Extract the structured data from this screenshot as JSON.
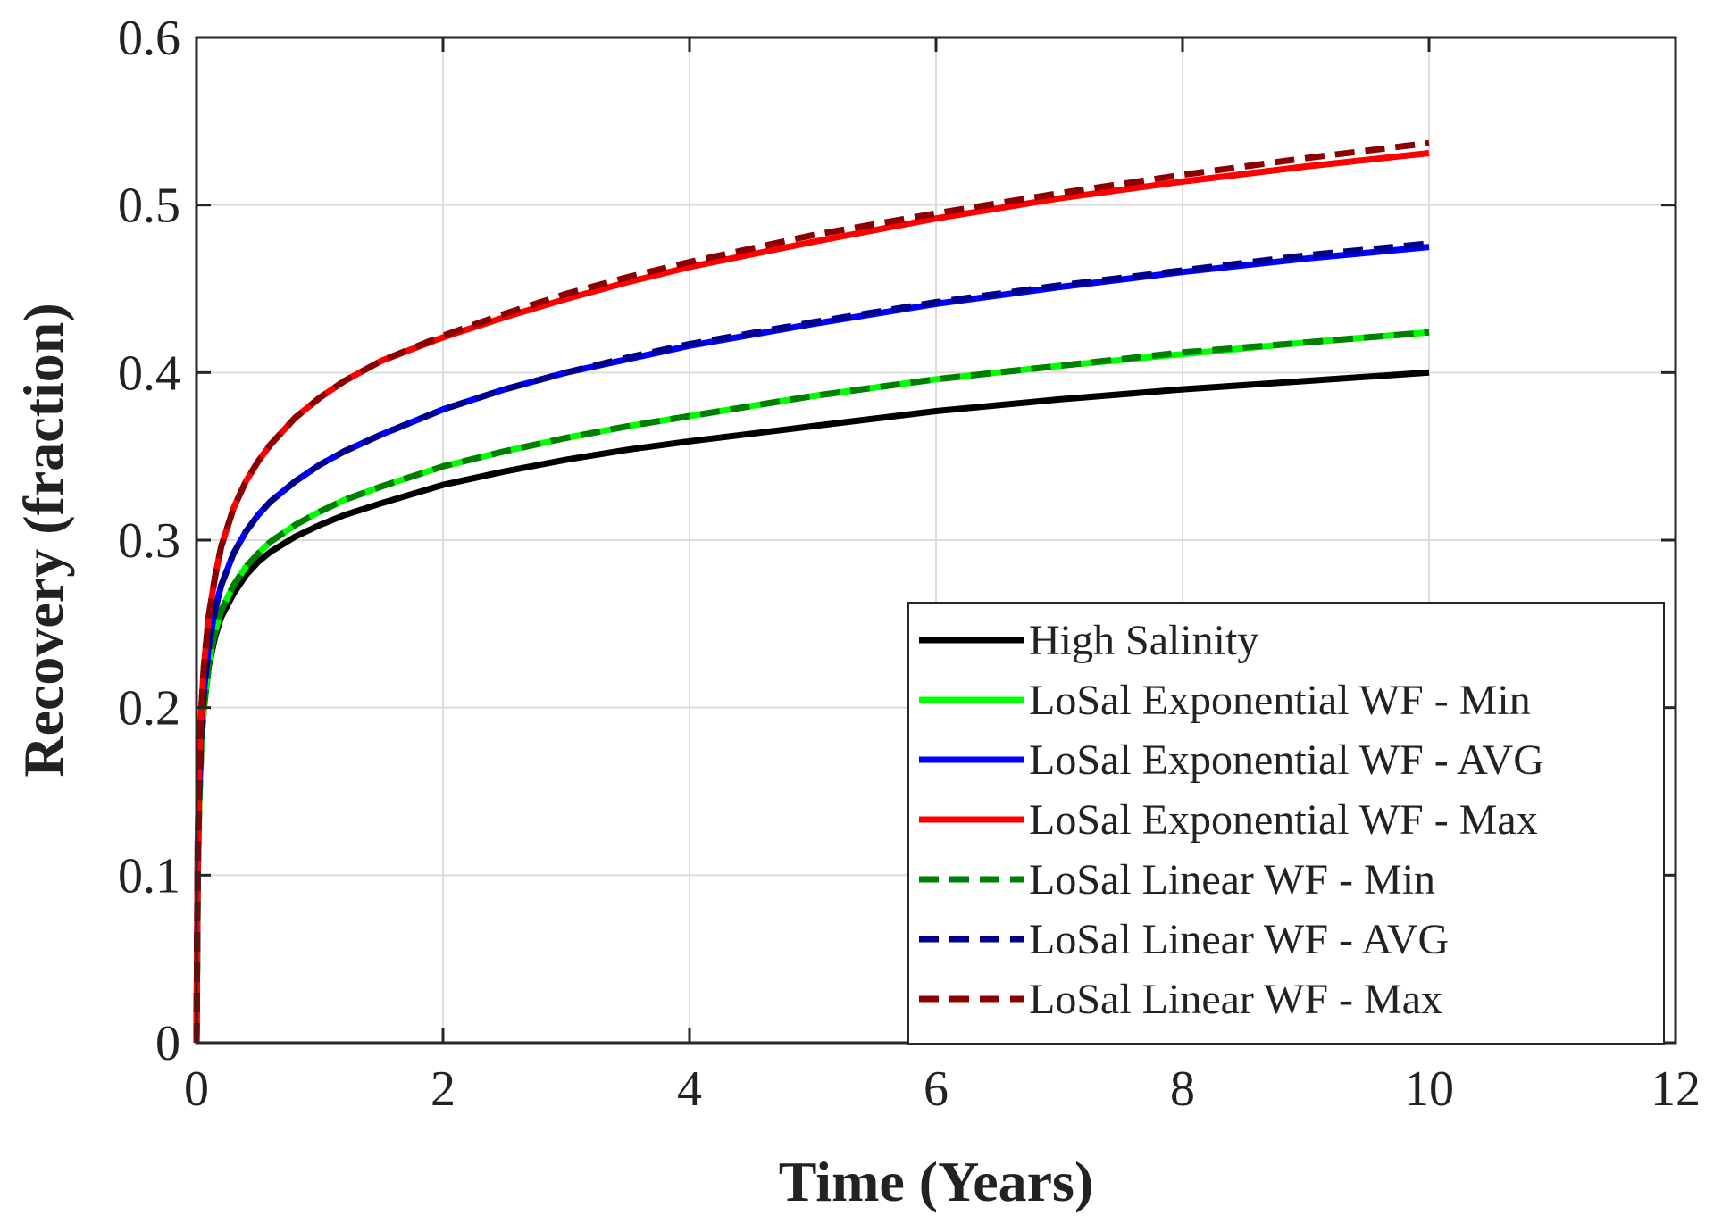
{
  "chart_data": {
    "type": "line",
    "title": "",
    "xlabel": "Time (Years)",
    "ylabel": "Recovery (fraction)",
    "xlim": [
      0,
      12
    ],
    "ylim": [
      0,
      0.6
    ],
    "xticks": [
      0,
      2,
      4,
      6,
      8,
      10,
      12
    ],
    "xtick_labels": [
      "0",
      "2",
      "4",
      "6",
      "8",
      "10",
      "12"
    ],
    "yticks": [
      0,
      0.1,
      0.2,
      0.3,
      0.4,
      0.5,
      0.6
    ],
    "ytick_labels": [
      "0",
      "0.1",
      "0.2",
      "0.3",
      "0.4",
      "0.5",
      "0.6"
    ],
    "grid": true,
    "legend_position": "bottom-right",
    "x": [
      0,
      0.01,
      0.02,
      0.04,
      0.06,
      0.1,
      0.15,
      0.2,
      0.3,
      0.4,
      0.5,
      0.6,
      0.8,
      1,
      1.2,
      1.5,
      2,
      2.5,
      3,
      3.5,
      4,
      5,
      6,
      7,
      8,
      9,
      10
    ],
    "series": [
      {
        "name": "High Salinity",
        "color": "#000000",
        "dash": "solid",
        "values": [
          0,
          0.1,
          0.14,
          0.18,
          0.2,
          0.225,
          0.242,
          0.254,
          0.268,
          0.279,
          0.287,
          0.293,
          0.302,
          0.309,
          0.315,
          0.322,
          0.333,
          0.341,
          0.348,
          0.354,
          0.359,
          0.368,
          0.377,
          0.384,
          0.39,
          0.395,
          0.4
        ]
      },
      {
        "name": "LoSal Exponential WF - Min",
        "color": "#00ff00",
        "dash": "solid",
        "values": [
          0,
          0.1,
          0.14,
          0.18,
          0.2,
          0.227,
          0.245,
          0.258,
          0.273,
          0.284,
          0.292,
          0.299,
          0.309,
          0.317,
          0.324,
          0.332,
          0.344,
          0.353,
          0.361,
          0.368,
          0.374,
          0.386,
          0.396,
          0.404,
          0.411,
          0.418,
          0.424
        ]
      },
      {
        "name": "LoSal Exponential WF - AVG",
        "color": "#0000ff",
        "dash": "solid",
        "values": [
          0,
          0.11,
          0.15,
          0.19,
          0.21,
          0.237,
          0.258,
          0.273,
          0.292,
          0.305,
          0.315,
          0.323,
          0.335,
          0.345,
          0.353,
          0.363,
          0.378,
          0.39,
          0.4,
          0.408,
          0.416,
          0.429,
          0.441,
          0.451,
          0.46,
          0.468,
          0.475
        ]
      },
      {
        "name": "LoSal Exponential WF - Max",
        "color": "#ff0000",
        "dash": "solid",
        "values": [
          0,
          0.12,
          0.16,
          0.2,
          0.225,
          0.255,
          0.278,
          0.296,
          0.319,
          0.335,
          0.347,
          0.357,
          0.373,
          0.385,
          0.395,
          0.407,
          0.421,
          0.433,
          0.444,
          0.454,
          0.463,
          0.478,
          0.492,
          0.504,
          0.514,
          0.523,
          0.531
        ]
      },
      {
        "name": "LoSal Linear WF - Min",
        "color": "#008000",
        "dash": "dashed",
        "values": [
          0,
          0.1,
          0.14,
          0.18,
          0.2,
          0.227,
          0.245,
          0.258,
          0.273,
          0.284,
          0.292,
          0.299,
          0.309,
          0.317,
          0.324,
          0.332,
          0.344,
          0.353,
          0.361,
          0.368,
          0.374,
          0.386,
          0.396,
          0.404,
          0.412,
          0.418,
          0.424
        ]
      },
      {
        "name": "LoSal Linear WF - AVG",
        "color": "#00008b",
        "dash": "dashed",
        "values": [
          0,
          0.11,
          0.15,
          0.19,
          0.21,
          0.237,
          0.258,
          0.273,
          0.292,
          0.305,
          0.315,
          0.323,
          0.335,
          0.345,
          0.353,
          0.363,
          0.378,
          0.39,
          0.4,
          0.409,
          0.417,
          0.43,
          0.442,
          0.452,
          0.461,
          0.47,
          0.477
        ]
      },
      {
        "name": "LoSal Linear WF - Max",
        "color": "#8b0000",
        "dash": "dashed",
        "values": [
          0,
          0.12,
          0.16,
          0.2,
          0.225,
          0.255,
          0.278,
          0.296,
          0.319,
          0.335,
          0.347,
          0.357,
          0.373,
          0.385,
          0.395,
          0.407,
          0.422,
          0.435,
          0.447,
          0.457,
          0.466,
          0.482,
          0.495,
          0.507,
          0.518,
          0.528,
          0.537
        ]
      }
    ]
  }
}
